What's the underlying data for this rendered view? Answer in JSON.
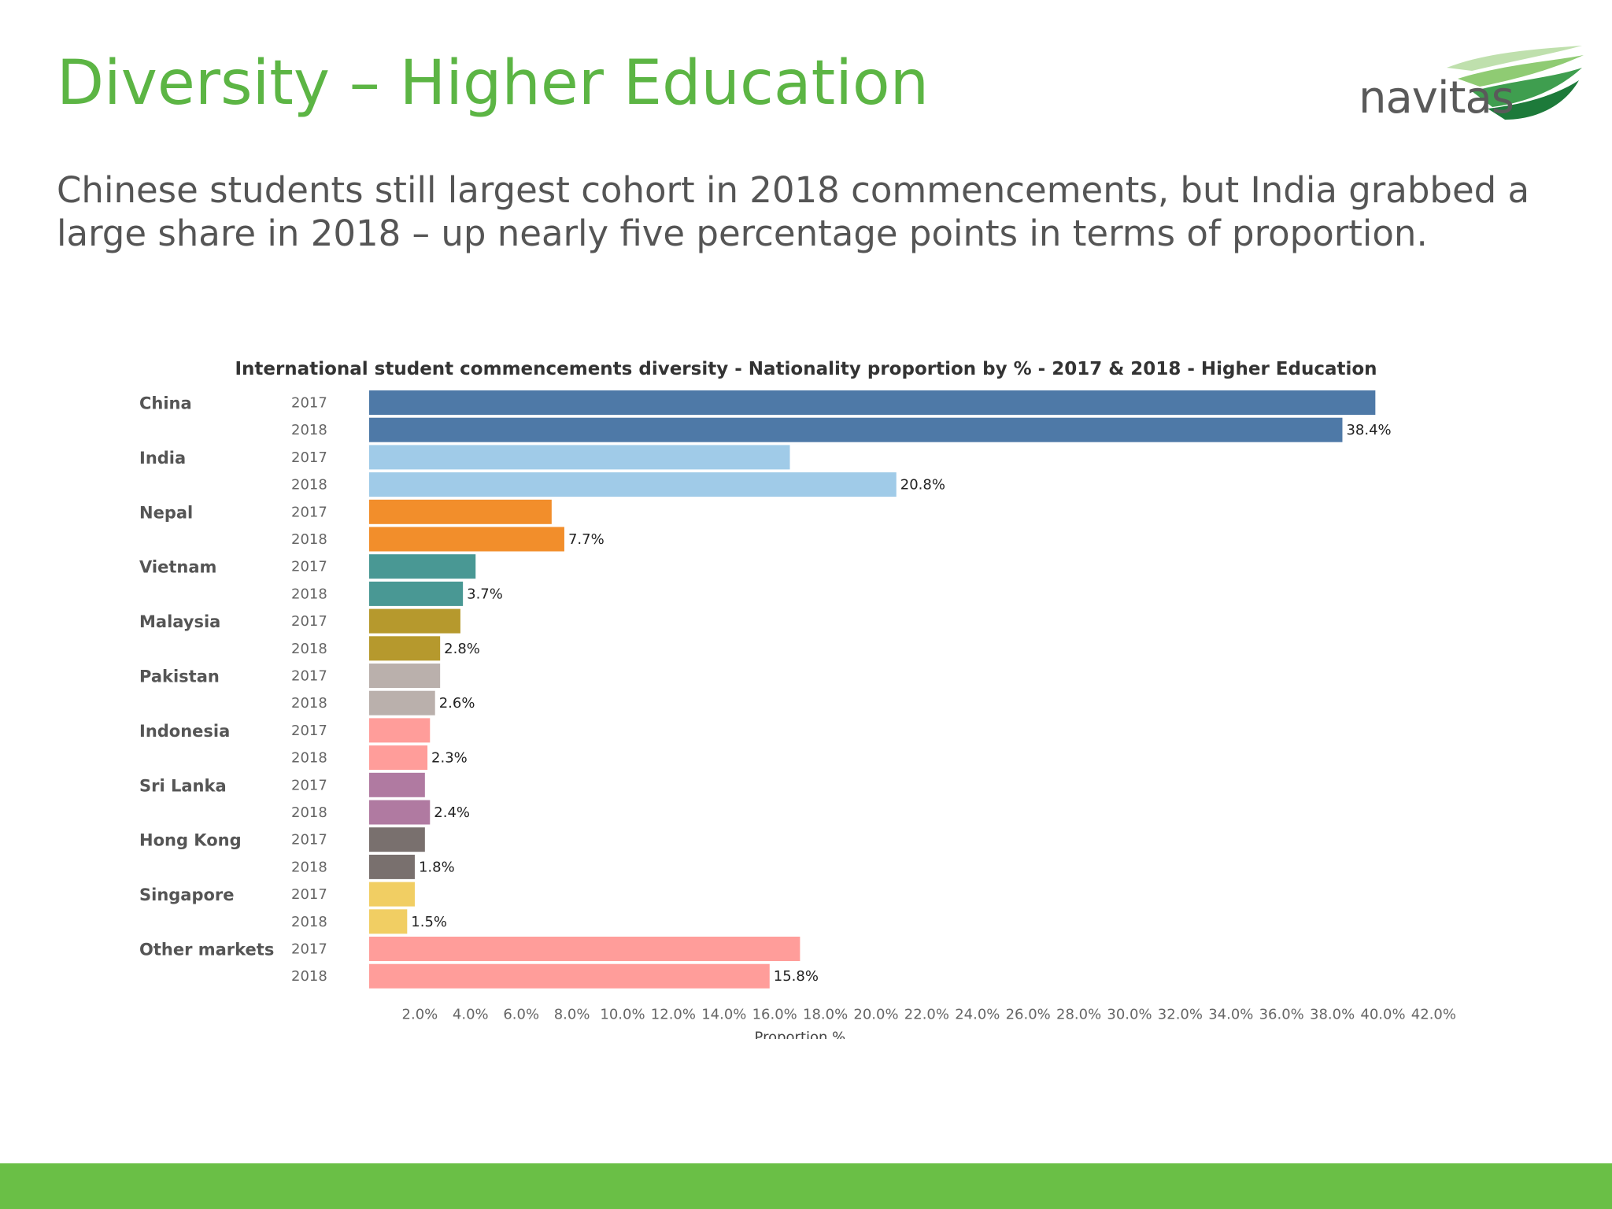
{
  "slide": {
    "title": "Diversity – Higher Education",
    "subtitle": "Chinese students still largest cohort in 2018 commencements, but India grabbed a large share in 2018 – up nearly five percentage points in terms of proportion.",
    "logo_text": "navitas",
    "title_color": "#5cb544",
    "footer_color": "#6abf46"
  },
  "chart_data": {
    "type": "bar",
    "orientation": "horizontal",
    "title": "International student commencements diversity -  Nationality proportion by % - 2017 & 2018 - Higher Education",
    "xlabel": "Proportion %",
    "ylabel": "",
    "xlim": [
      0,
      42
    ],
    "x_ticks": [
      "2.0%",
      "4.0%",
      "6.0%",
      "8.0%",
      "10.0%",
      "12.0%",
      "14.0%",
      "16.0%",
      "18.0%",
      "20.0%",
      "22.0%",
      "24.0%",
      "26.0%",
      "28.0%",
      "30.0%",
      "32.0%",
      "34.0%",
      "36.0%",
      "38.0%",
      "40.0%",
      "42.0%"
    ],
    "x_tick_values": [
      2,
      4,
      6,
      8,
      10,
      12,
      14,
      16,
      18,
      20,
      22,
      24,
      26,
      28,
      30,
      32,
      34,
      36,
      38,
      40,
      42
    ],
    "grid": false,
    "legend": "none",
    "years": [
      "2017",
      "2018"
    ],
    "categories": [
      "China",
      "India",
      "Nepal",
      "Vietnam",
      "Malaysia",
      "Pakistan",
      "Indonesia",
      "Sri Lanka",
      "Hong Kong",
      "Singapore",
      "Other markets"
    ],
    "colors": [
      "#4e79a7",
      "#a0cbe8",
      "#f28e2b",
      "#499894",
      "#b6992d",
      "#bab0ac",
      "#ff9d9a",
      "#b07aa1",
      "#79706e",
      "#f1ce63",
      "#ff9d9a"
    ],
    "values_2017": [
      39.7,
      16.6,
      7.2,
      4.2,
      3.6,
      2.8,
      2.4,
      2.2,
      2.2,
      1.8,
      17.0
    ],
    "values_2018": [
      38.4,
      20.8,
      7.7,
      3.7,
      2.8,
      2.6,
      2.3,
      2.4,
      1.8,
      1.5,
      15.8
    ],
    "labels_2018": [
      "38.4%",
      "20.8%",
      "7.7%",
      "3.7%",
      "2.8%",
      "2.6%",
      "2.3%",
      "2.4%",
      "1.8%",
      "1.5%",
      "15.8%"
    ]
  }
}
